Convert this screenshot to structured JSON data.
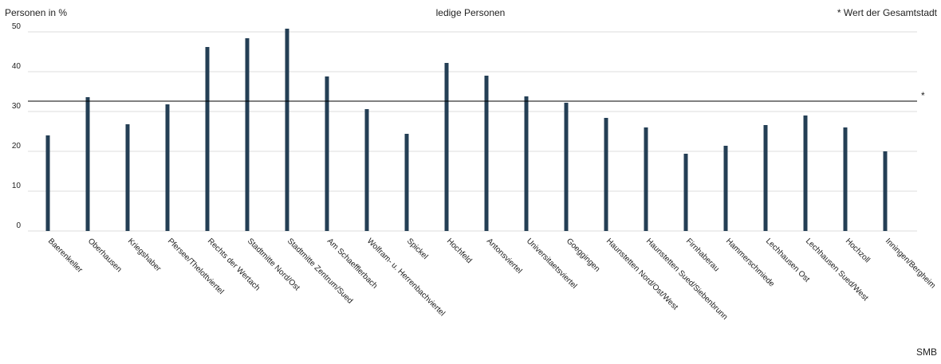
{
  "chart_data": {
    "type": "bar",
    "title": "ledige Personen",
    "y_label": "Personen in %",
    "note": "* Wert der Gesamtstadt",
    "source": "SMB",
    "categories": [
      "Baerenkeller",
      "Oberhausen",
      "Kriegshaber",
      "Pfersee/Thelottviertel",
      "Rechts der Wertach",
      "Stadtmitte Nord/Ost",
      "Stadtmitte Zentrum/Sued",
      "Am Schaefflerbach",
      "Wolfram- u. Herrenbachviertel",
      "Spickel",
      "Hochfeld",
      "Antonsviertel",
      "Universitaetsviertel",
      "Goeggingen",
      "Haunstetten Nord/Ost/West",
      "Haunstetten Sued/Siebenbrunn",
      "Firnhaberau",
      "Hammerschmiede",
      "Lechhausen Ost",
      "Lechhausen Sued/West",
      "Hochzoll",
      "Inningen/Bergheim"
    ],
    "values": [
      24,
      33.6,
      26.8,
      31.8,
      46.2,
      48.4,
      50.8,
      38.8,
      30.6,
      24.4,
      42.2,
      39,
      33.8,
      32.2,
      28.4,
      26,
      19.4,
      21.4,
      26.6,
      29,
      26,
      20
    ],
    "color": "#243f55",
    "reference_line": {
      "value": 32.6,
      "label": "*"
    },
    "ylim": [
      0,
      50
    ],
    "yticks": [
      0,
      10,
      20,
      30,
      40,
      50
    ],
    "grid": true
  }
}
